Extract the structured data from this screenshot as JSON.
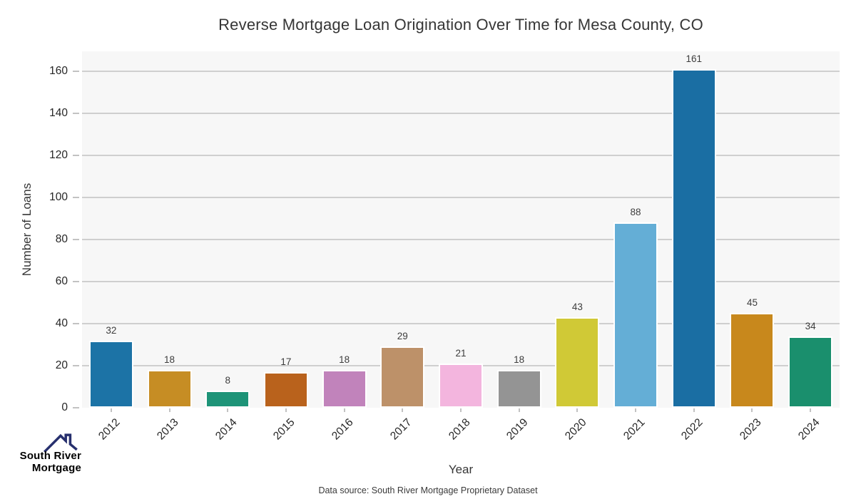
{
  "title": "Reverse Mortgage Loan Origination Over Time for Mesa County, CO",
  "chart_data": {
    "type": "bar",
    "title": "Reverse Mortgage Loan Origination Over Time for Mesa County, CO",
    "categories": [
      "2012",
      "2013",
      "2014",
      "2015",
      "2016",
      "2017",
      "2018",
      "2019",
      "2020",
      "2021",
      "2022",
      "2023",
      "2024"
    ],
    "values": [
      32,
      18,
      8,
      17,
      18,
      29,
      21,
      18,
      43,
      88,
      161,
      45,
      34
    ],
    "bar_colors": [
      "#1c73a6",
      "#c68d24",
      "#1e9478",
      "#b9621c",
      "#c183bb",
      "#bd9169",
      "#f3b5de",
      "#949494",
      "#d0c936",
      "#64aed6",
      "#1a6ea3",
      "#c8881c",
      "#1a8f6d"
    ],
    "xlabel": "Year",
    "ylabel": "Number of Loans",
    "yticks": [
      0,
      20,
      40,
      60,
      80,
      100,
      120,
      140,
      160
    ],
    "ylim": [
      0,
      169.5
    ],
    "grid": true,
    "legend": "none",
    "plot_bg": "#f7f7f7",
    "gridline_color": "#cfcfcf"
  },
  "footer": {
    "source": "Data source: South River Mortgage Proprietary Dataset"
  },
  "logo": {
    "line1": "South River",
    "line2": "Mortgage",
    "color1": "#27306e",
    "color2": "#4656b8",
    "roof_color": "#27306e"
  }
}
